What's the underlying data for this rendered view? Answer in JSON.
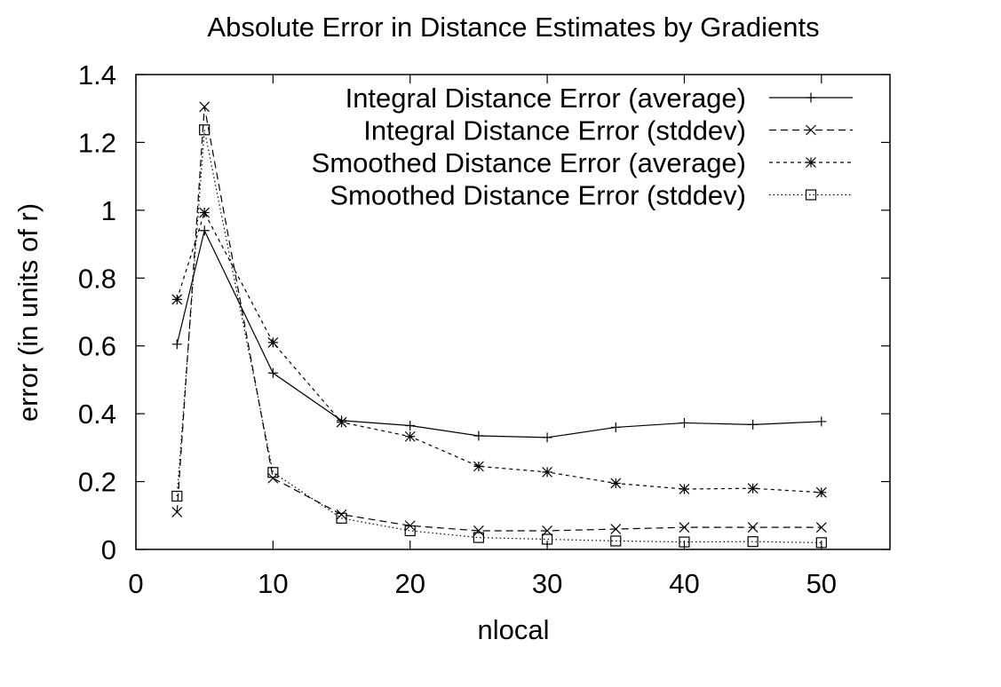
{
  "chart_data": {
    "type": "line",
    "title": "Absolute Error in Distance Estimates by Gradients",
    "xlabel": "nlocal",
    "ylabel": "error (in units of r)",
    "xlim": [
      0,
      55
    ],
    "ylim": [
      0,
      1.4
    ],
    "xticks": [
      0,
      10,
      20,
      30,
      40,
      50
    ],
    "yticks": [
      0,
      0.2,
      0.4,
      0.6,
      0.8,
      1,
      1.2,
      1.4
    ],
    "xtick_labels": [
      "0",
      "10",
      "20",
      "30",
      "40",
      "50"
    ],
    "ytick_labels": [
      "0",
      "0.2",
      "0.4",
      "0.6",
      "0.8",
      "1",
      "1.2",
      "1.4"
    ],
    "grid": false,
    "legend_position": "top-right",
    "x": [
      3,
      5,
      10,
      15,
      20,
      25,
      30,
      35,
      40,
      45,
      50
    ],
    "series": [
      {
        "name": "Integral Distance Error (average)",
        "marker": "plus",
        "dash": "solid",
        "values": [
          0.605,
          0.94,
          0.52,
          0.38,
          0.365,
          0.335,
          0.33,
          0.36,
          0.373,
          0.368,
          0.377
        ]
      },
      {
        "name": "Integral Distance Error (stddev)",
        "marker": "cross",
        "dash": "dashed",
        "values": [
          0.11,
          1.305,
          0.21,
          0.103,
          0.07,
          0.055,
          0.055,
          0.06,
          0.065,
          0.065,
          0.065
        ]
      },
      {
        "name": "Smoothed Distance Error (average)",
        "marker": "star",
        "dash": "short-dashed",
        "values": [
          0.737,
          0.993,
          0.61,
          0.375,
          0.333,
          0.245,
          0.228,
          0.195,
          0.178,
          0.18,
          0.168
        ]
      },
      {
        "name": "Smoothed Distance Error (stddev)",
        "marker": "box",
        "dash": "dotted",
        "values": [
          0.157,
          1.237,
          0.227,
          0.092,
          0.055,
          0.035,
          0.03,
          0.025,
          0.022,
          0.023,
          0.02
        ]
      }
    ]
  }
}
